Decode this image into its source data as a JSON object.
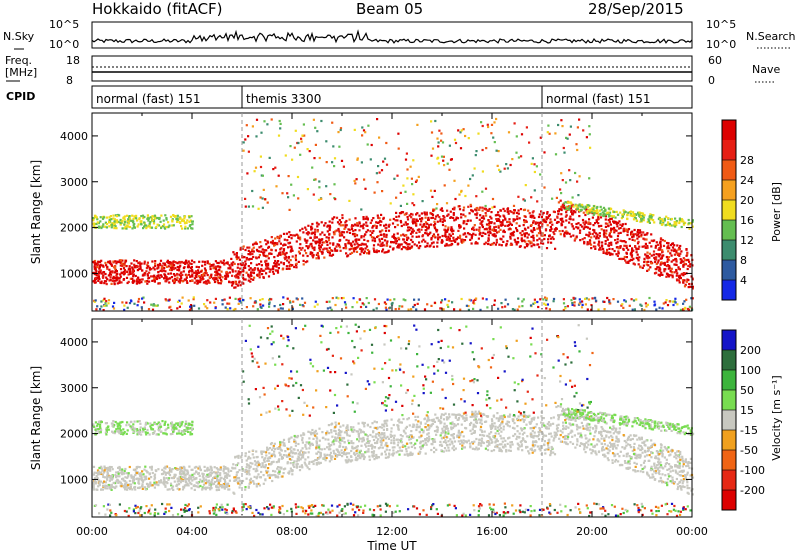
{
  "header": {
    "title": "Hokkaido (fitACF)",
    "beam": "Beam 05",
    "date": "28/Sep/2015"
  },
  "strips": {
    "nsky_label": "N.Sky",
    "nsky_ticks": [
      "10^5",
      "10^0"
    ],
    "nsearch_label": "N.Search",
    "nsearch_ticks": [
      "10^5",
      "10^0"
    ],
    "freq_label": "Freq.",
    "freq_unit": "[MHz]",
    "freq_ticks": [
      "18",
      "8"
    ],
    "nave_label": "Nave",
    "nave_ticks": [
      "60",
      "0"
    ],
    "cpid_label": "CPID",
    "cpid_segments": [
      {
        "label": "normal (fast) 151",
        "start_h": 0,
        "end_h": 6
      },
      {
        "label": "themis 3300",
        "start_h": 6,
        "end_h": 18
      },
      {
        "label": "normal (fast) 151",
        "start_h": 18,
        "end_h": 24
      }
    ]
  },
  "chart_data": [
    {
      "type": "heatmap",
      "panel": "power",
      "ylabel": "Slant Range [km]",
      "ylim": [
        180,
        4500
      ],
      "yticks": [
        1000,
        2000,
        3000,
        4000
      ],
      "xlim": [
        0,
        24
      ],
      "colorbar_label": "Power [dB]",
      "colorbar_ticks": [
        "4",
        "8",
        "12",
        "16",
        "20",
        "24",
        "28"
      ],
      "colors": [
        "#1428e6",
        "#2d5aa0",
        "#3c8c6e",
        "#64be50",
        "#f0dc1e",
        "#f5a01e",
        "#f05a14",
        "#e61e14",
        "#dc0000"
      ]
    },
    {
      "type": "heatmap",
      "panel": "velocity",
      "ylabel": "Slant Range [km]",
      "ylim": [
        180,
        4500
      ],
      "yticks": [
        1000,
        2000,
        3000,
        4000
      ],
      "xlim": [
        0,
        24
      ],
      "xticks": [
        "00:00",
        "04:00",
        "08:00",
        "12:00",
        "16:00",
        "20:00",
        "00:00"
      ],
      "xlabel": "Time UT",
      "colorbar_label": "Velocity [m s⁻¹]",
      "colorbar_ticks": [
        "200",
        "100",
        "50",
        "15",
        "-15",
        "-50",
        "-100",
        "-200"
      ],
      "colors": [
        "#1414c8",
        "#2d6e3c",
        "#3cb43c",
        "#78dc50",
        "#c8c8c0",
        "#f0a01e",
        "#f06414",
        "#e62814",
        "#dc0000"
      ]
    }
  ]
}
